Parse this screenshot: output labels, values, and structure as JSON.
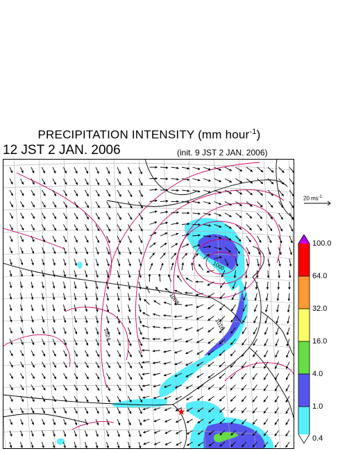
{
  "header": {
    "title": "PRECIPITATION INTENSITY (mm hour",
    "title_exp": "-1",
    "title_close": ")",
    "valid_time": "12 JST 2 JAN. 2006",
    "init_time": "(init. 9 JST 2 JAN. 2006)"
  },
  "reference_vector": {
    "value": "20 ms",
    "exp": "-1"
  },
  "map": {
    "isobar_labels": [
      "1000",
      "1008",
      "1016",
      "1024"
    ],
    "marker_symbol": "★"
  },
  "colorbar": {
    "levels": [
      "100.0",
      "64.0",
      "32.0",
      "16.0",
      "4.0",
      "1.0",
      "0.4"
    ],
    "colors": [
      "#ff0000",
      "#ff9933",
      "#ffff66",
      "#66dd44",
      "#5555ee",
      "#55eeff"
    ],
    "over_color": "#bb00ee",
    "under_color": "#ffffff"
  },
  "colors": {
    "isobar": "#cc0066",
    "coast": "#000000",
    "grid": "#aaaaaa"
  }
}
